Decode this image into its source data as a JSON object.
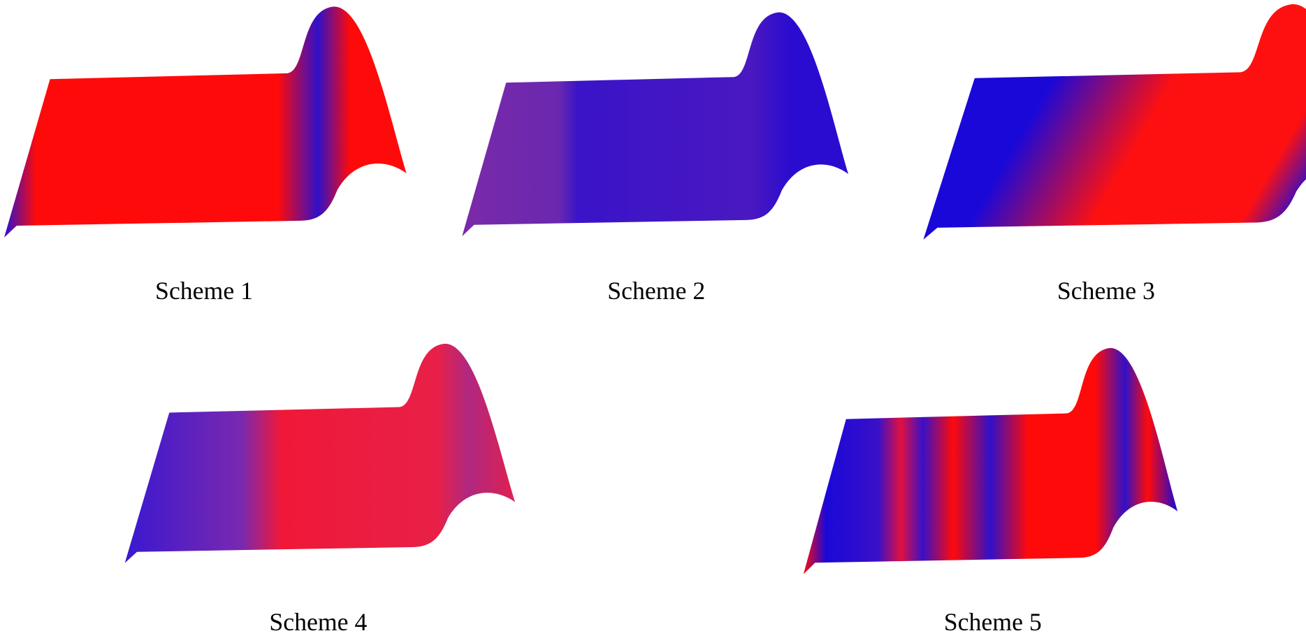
{
  "captions": [
    "Scheme 1",
    "Scheme 2",
    "Scheme 3",
    "Scheme 4",
    "Scheme 5"
  ]
}
